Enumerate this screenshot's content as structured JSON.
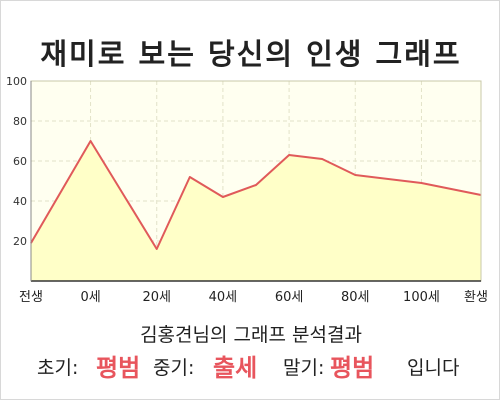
{
  "chart_data": {
    "type": "area",
    "title": "재미로 보는 당신의 인생 그래프",
    "subtitle": "김홍견님의 그래프 분석결과",
    "x_tick_labels": [
      "전생",
      "0세",
      "20세",
      "40세",
      "60세",
      "80세",
      "100세",
      "환생"
    ],
    "y_ticks": [
      20,
      40,
      60,
      80,
      100
    ],
    "ylim": [
      0,
      100
    ],
    "grid": true,
    "series": [
      {
        "points": [
          {
            "x": "전생",
            "y": 19
          },
          {
            "x": "0세",
            "y": 70
          },
          {
            "x": "20세",
            "y": 16
          },
          {
            "x": "30세",
            "y": 52
          },
          {
            "x": "40세",
            "y": 42
          },
          {
            "x": "50세",
            "y": 48
          },
          {
            "x": "60세",
            "y": 63
          },
          {
            "x": "70세",
            "y": 61
          },
          {
            "x": "80세",
            "y": 53
          },
          {
            "x": "100세",
            "y": 49
          },
          {
            "x": "환생",
            "y": 43
          }
        ]
      }
    ],
    "colors": {
      "line": "#e05a5a",
      "fill": "#ffffc8",
      "plot_bg": "#fffff0",
      "grid": "#e2e2c8"
    }
  },
  "result": {
    "early_label": "초기:",
    "early_value": "평범",
    "middle_label": "중기:",
    "middle_value": "출세",
    "late_label": "말기:",
    "late_value": "평범",
    "suffix": "입니다"
  }
}
